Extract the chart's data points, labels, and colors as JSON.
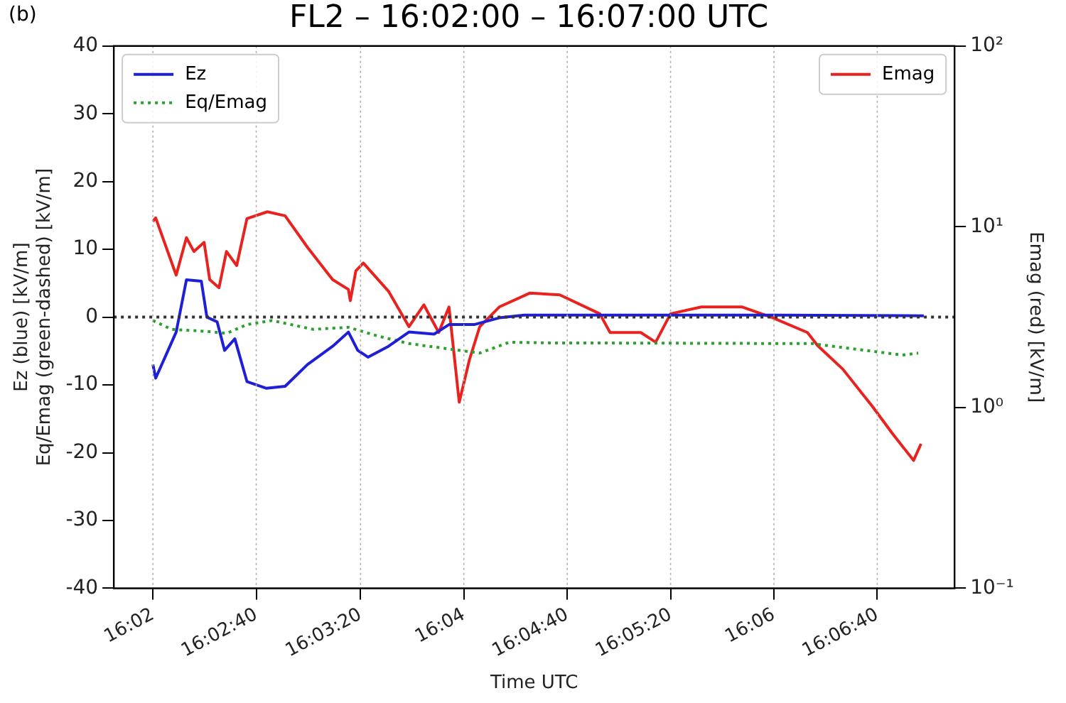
{
  "chart_data": {
    "type": "line",
    "title": "FL2 – 16:02:00 – 16:07:00 UTC",
    "xlabel": "Time UTC",
    "ylabel": "Ez (blue) [kV/m]\nEq/Emag (green-dashed) [kV/m]",
    "y2label": "Emag (red) [kV/m]",
    "annotations": [
      "(b)"
    ],
    "xlim": [
      16.0291,
      16.1194
    ],
    "xticks": [
      {
        "value": 16.0333,
        "label": "16:02"
      },
      {
        "value": 16.0444,
        "label": "16:02:40"
      },
      {
        "value": 16.0556,
        "label": "16:03:20"
      },
      {
        "value": 16.0667,
        "label": "16:04"
      },
      {
        "value": 16.0778,
        "label": "16:04:40"
      },
      {
        "value": 16.0889,
        "label": "16:05:20"
      },
      {
        "value": 16.1,
        "label": "16:06"
      },
      {
        "value": 16.1111,
        "label": "16:06:40"
      }
    ],
    "ylim": [
      -40,
      40
    ],
    "yticks": [
      -40,
      -30,
      -20,
      -10,
      0,
      10,
      20,
      30,
      40
    ],
    "y2lim": [
      0.1,
      100
    ],
    "y2ticks": [
      {
        "value": 0.1,
        "label": "10⁻¹"
      },
      {
        "value": 1,
        "label": "10⁰"
      },
      {
        "value": 10,
        "label": "10¹"
      },
      {
        "value": 100,
        "label": "10²"
      }
    ],
    "log": "y2",
    "grid": "x",
    "legend": "top left",
    "ref_lines": [
      {
        "axis": "y",
        "value": 0,
        "label": null,
        "color": "#333333",
        "line_style": "dotted"
      }
    ],
    "series": [
      {
        "name": "Ez",
        "color": "#1f1fd6",
        "line_style": "solid",
        "x": [
          16.0333,
          16.0336,
          16.0347,
          16.0358,
          16.0369,
          16.0385,
          16.0391,
          16.0402,
          16.041,
          16.0421,
          16.0434,
          16.0455,
          16.0475,
          16.0499,
          16.0526,
          16.0543,
          16.0553,
          16.0564,
          16.0586,
          16.0608,
          16.0635,
          16.0651,
          16.0678,
          16.0705,
          16.0732,
          16.0841,
          16.1003,
          16.1161
        ],
        "values": [
          -7,
          -9,
          -5.6,
          -2.2,
          5.5,
          5.3,
          0,
          -0.7,
          -4.9,
          -3.2,
          -9.5,
          -10.5,
          -10.2,
          -7,
          -4.3,
          -2.2,
          -4.9,
          -5.9,
          -4.3,
          -2.2,
          -2.5,
          -1.1,
          -1.1,
          -0.1,
          0.3,
          0.3,
          0.3,
          0.2
        ]
      },
      {
        "name": "Eq/Emag",
        "color": "#2ca02c",
        "line_style": "dotted",
        "x": [
          16.0333,
          16.0353,
          16.0391,
          16.0412,
          16.0434,
          16.0461,
          16.0505,
          16.0543,
          16.0575,
          16.0608,
          16.0646,
          16.0684,
          16.0716,
          16.0759,
          16.1041,
          16.1138,
          16.1155
        ],
        "values": [
          -0.5,
          -1.8,
          -2.1,
          -2.4,
          -1.1,
          -0.5,
          -1.8,
          -1.5,
          -2.8,
          -3.9,
          -4.6,
          -5.3,
          -3.7,
          -3.8,
          -3.9,
          -5.6,
          -5.3
        ]
      },
      {
        "name": "Emag",
        "color": "#e8231f",
        "line_style": "solid",
        "axis": "y2",
        "x": [
          16.0333,
          16.0336,
          16.0358,
          16.0369,
          16.0377,
          16.0388,
          16.0394,
          16.0404,
          16.0412,
          16.0423,
          16.0434,
          16.0456,
          16.0475,
          16.0499,
          16.0526,
          16.0543,
          16.0545,
          16.0551,
          16.0559,
          16.0586,
          16.0608,
          16.0624,
          16.064,
          16.0651,
          16.0662,
          16.0673,
          16.0684,
          16.0705,
          16.0738,
          16.077,
          16.0813,
          16.0824,
          16.0857,
          16.0873,
          16.0889,
          16.0922,
          16.0966,
          16.0998,
          16.1036,
          16.1047,
          16.1074,
          16.1106,
          16.1128,
          16.115,
          16.1158
        ],
        "values": [
          10.7,
          11.2,
          5.4,
          8.7,
          7.3,
          8.2,
          5.1,
          4.6,
          7.3,
          6.1,
          11.1,
          12.1,
          11.5,
          7.7,
          5.1,
          4.5,
          3.9,
          5.7,
          6.3,
          4.4,
          2.8,
          3.7,
          2.6,
          3.6,
          1.07,
          1.84,
          2.8,
          3.6,
          4.3,
          4.2,
          3.3,
          2.6,
          2.6,
          2.3,
          3.3,
          3.6,
          3.6,
          3.15,
          2.6,
          2.2,
          1.63,
          1.01,
          0.71,
          0.51,
          0.63
        ]
      }
    ]
  }
}
